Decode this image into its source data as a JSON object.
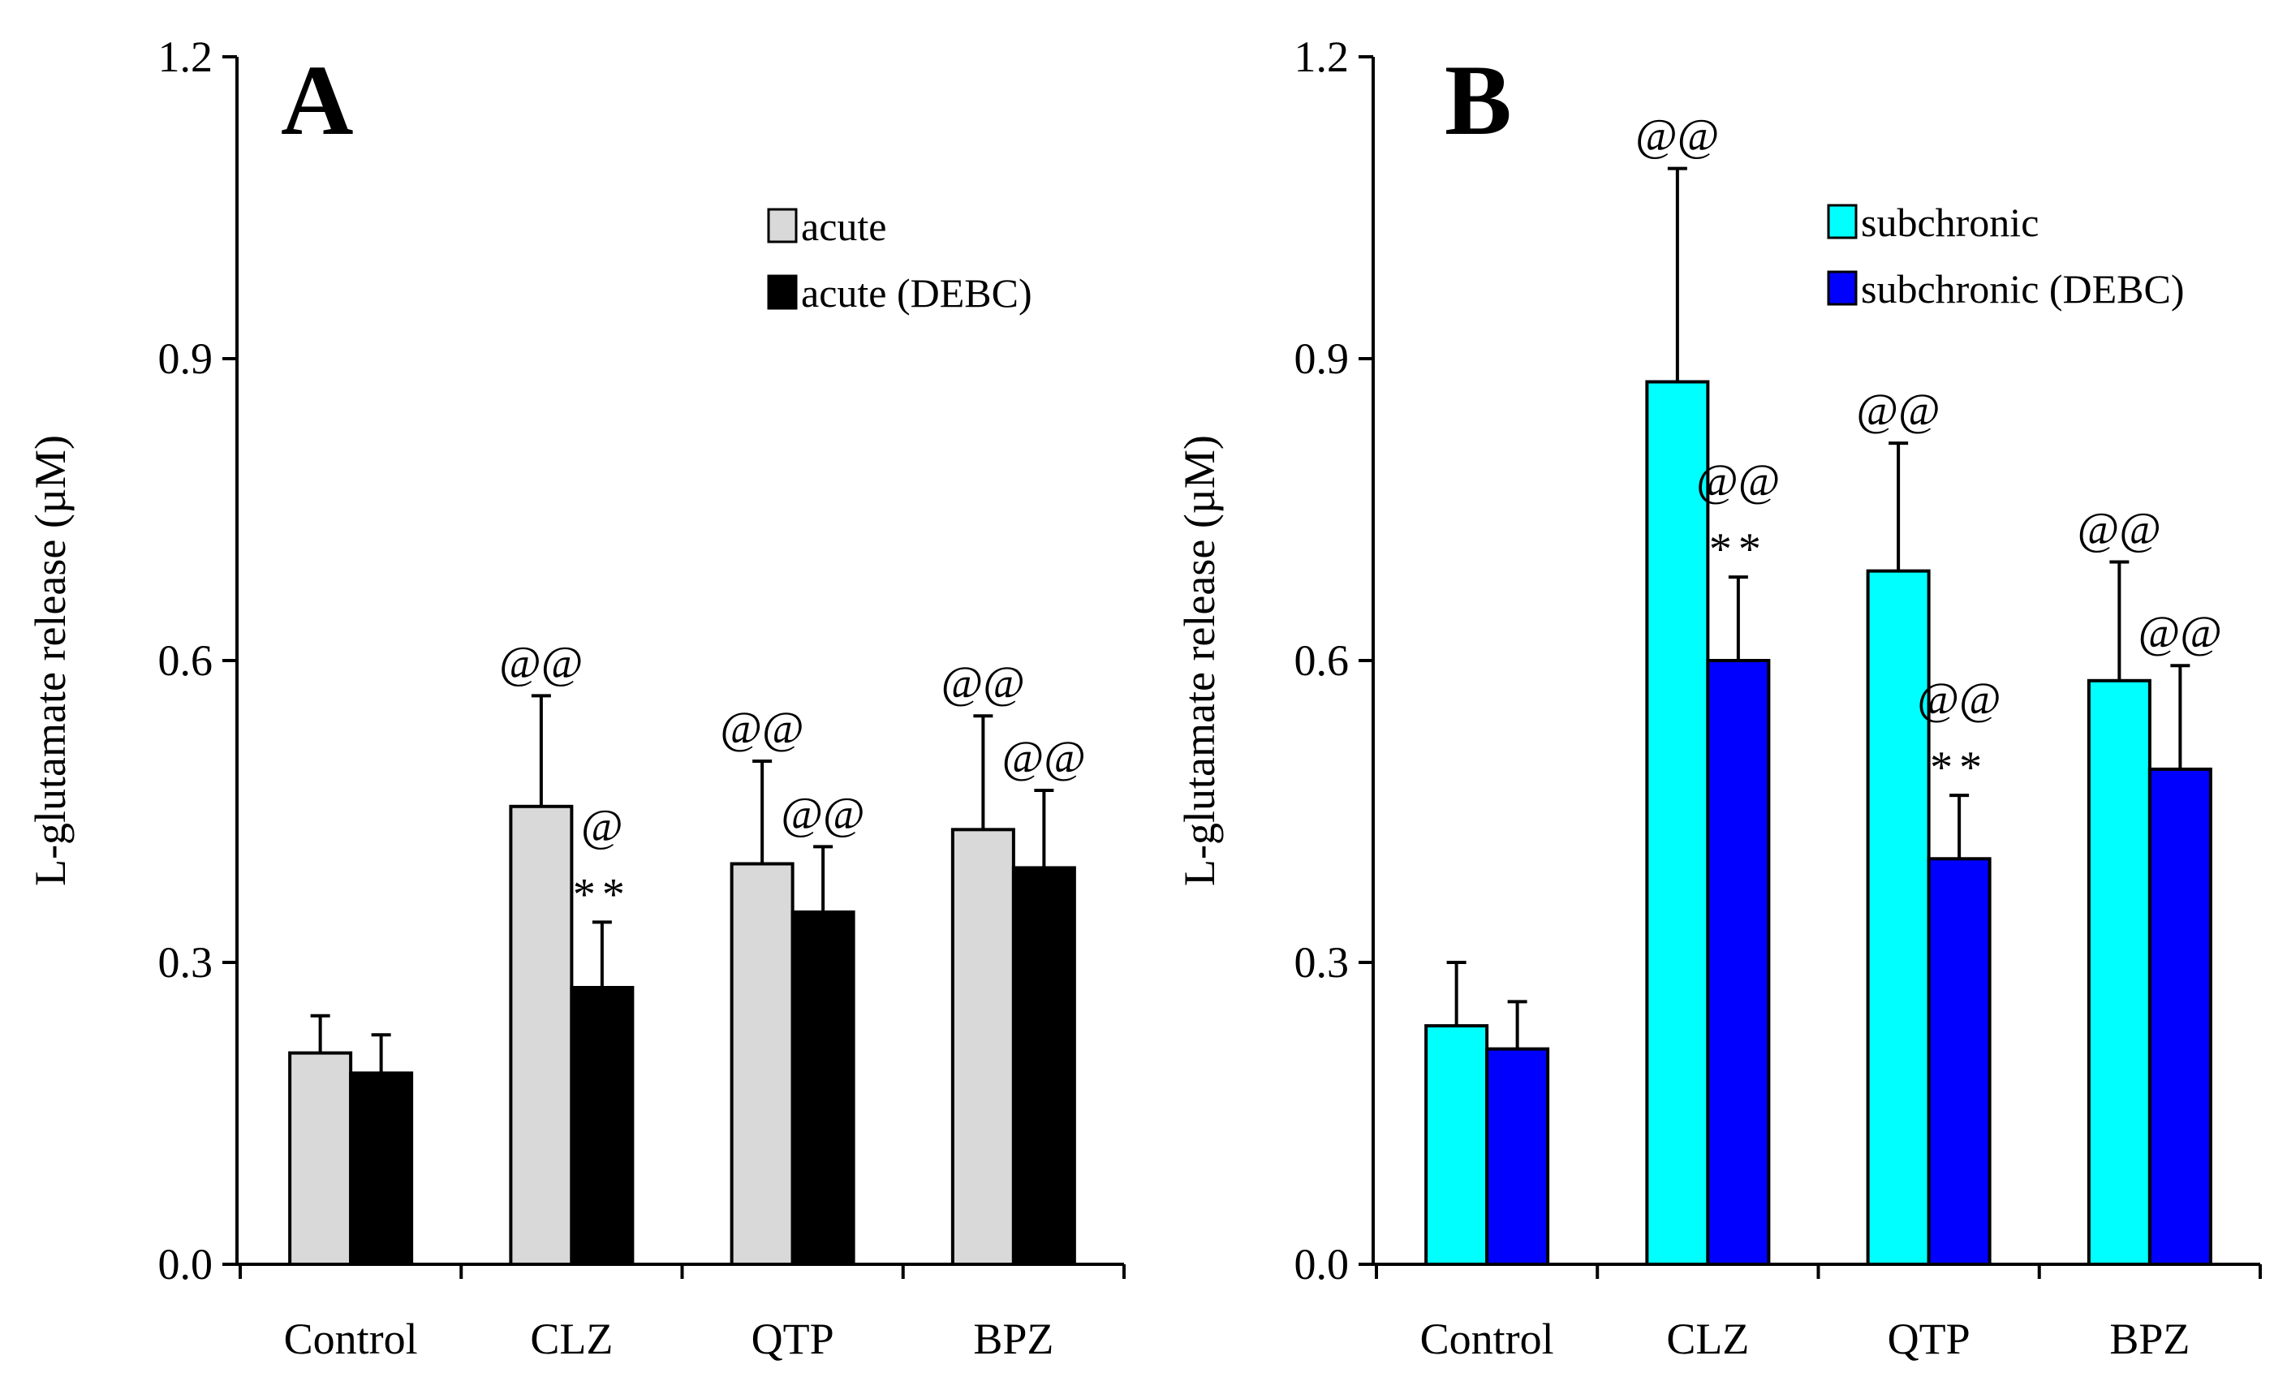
{
  "chart_data": [
    {
      "type": "bar",
      "panel_label": "A",
      "ylabel": "L-glutamate release (µM)",
      "xlabel": "",
      "ylim": [
        0,
        1.2
      ],
      "yticks": [
        "0.0",
        "0.3",
        "0.6",
        "0.9",
        "1.2"
      ],
      "categories": [
        "Control",
        "CLZ",
        "QTP",
        "BPZ"
      ],
      "legend_position": "upper-right",
      "series": [
        {
          "name": "acute",
          "color": "#d9d9d9",
          "values": [
            0.21,
            0.455,
            0.398,
            0.432
          ],
          "errors": [
            0.037,
            0.11,
            0.102,
            0.113
          ],
          "annotations": [
            "",
            "@@",
            "@@",
            "@@"
          ]
        },
        {
          "name": "acute (DEBC)",
          "color": "#000000",
          "values": [
            0.19,
            0.275,
            0.35,
            0.394
          ],
          "errors": [
            0.038,
            0.065,
            0.065,
            0.077
          ],
          "annotations": [
            "",
            "@",
            "@@",
            "@@"
          ],
          "stars": [
            "",
            "**",
            "",
            ""
          ]
        }
      ]
    },
    {
      "type": "bar",
      "panel_label": "B",
      "ylabel": "L-glutamate release (µM)",
      "xlabel": "",
      "ylim": [
        0,
        1.2
      ],
      "yticks": [
        "0.0",
        "0.3",
        "0.6",
        "0.9",
        "1.2"
      ],
      "categories": [
        "Control",
        "CLZ",
        "QTP",
        "BPZ"
      ],
      "legend_position": "upper-right",
      "series": [
        {
          "name": "subchronic",
          "color": "#00ffff",
          "values": [
            0.237,
            0.877,
            0.689,
            0.58
          ],
          "errors": [
            0.063,
            0.212,
            0.127,
            0.118
          ],
          "annotations": [
            "",
            "@@",
            "@@",
            "@@"
          ]
        },
        {
          "name": "subchronic (DEBC)",
          "color": "#0000ff",
          "values": [
            0.214,
            0.6,
            0.403,
            0.492
          ],
          "errors": [
            0.047,
            0.083,
            0.063,
            0.103
          ],
          "annotations": [
            "",
            "@@",
            "@@",
            "@@"
          ],
          "stars": [
            "",
            "**",
            "**",
            ""
          ]
        }
      ]
    }
  ]
}
